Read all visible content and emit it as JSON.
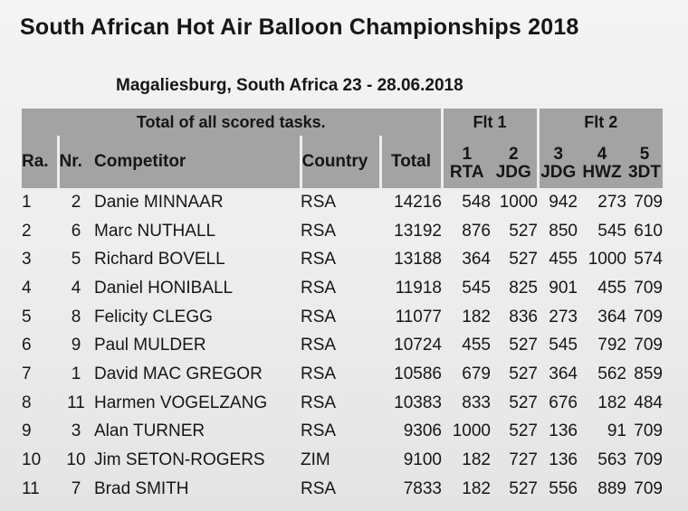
{
  "title": "South African Hot Air Balloon Championships 2018",
  "subtitle": "Magaliesburg, South Africa 23 - 28.06.2018",
  "header": {
    "caption": "Total of all scored tasks.",
    "flight1": "Flt 1",
    "flight2": "Flt 2",
    "col_rank": "Ra.",
    "col_nr": "Nr.",
    "col_competitor": "Competitor",
    "col_country": "Country",
    "col_total": "Total",
    "tasks": [
      {
        "num": "1",
        "code": "RTA"
      },
      {
        "num": "2",
        "code": "JDG"
      },
      {
        "num": "3",
        "code": "JDG"
      },
      {
        "num": "4",
        "code": "HWZ"
      },
      {
        "num": "5",
        "code": "3DT"
      }
    ]
  },
  "rows": [
    {
      "rank": "1",
      "nr": "2",
      "name": "Danie MINNAAR",
      "country": "RSA",
      "total": "14216",
      "t1": "548",
      "t2": "1000",
      "t3": "942",
      "t4": "273",
      "t5": "709"
    },
    {
      "rank": "2",
      "nr": "6",
      "name": "Marc NUTHALL",
      "country": "RSA",
      "total": "13192",
      "t1": "876",
      "t2": "527",
      "t3": "850",
      "t4": "545",
      "t5": "610"
    },
    {
      "rank": "3",
      "nr": "5",
      "name": "Richard BOVELL",
      "country": "RSA",
      "total": "13188",
      "t1": "364",
      "t2": "527",
      "t3": "455",
      "t4": "1000",
      "t5": "574"
    },
    {
      "rank": "4",
      "nr": "4",
      "name": "Daniel HONIBALL",
      "country": "RSA",
      "total": "11918",
      "t1": "545",
      "t2": "825",
      "t3": "901",
      "t4": "455",
      "t5": "709"
    },
    {
      "rank": "5",
      "nr": "8",
      "name": "Felicity CLEGG",
      "country": "RSA",
      "total": "11077",
      "t1": "182",
      "t2": "836",
      "t3": "273",
      "t4": "364",
      "t5": "709"
    },
    {
      "rank": "6",
      "nr": "9",
      "name": "Paul MULDER",
      "country": "RSA",
      "total": "10724",
      "t1": "455",
      "t2": "527",
      "t3": "545",
      "t4": "792",
      "t5": "709"
    },
    {
      "rank": "7",
      "nr": "1",
      "name": "David MAC GREGOR",
      "country": "RSA",
      "total": "10586",
      "t1": "679",
      "t2": "527",
      "t3": "364",
      "t4": "562",
      "t5": "859"
    },
    {
      "rank": "8",
      "nr": "11",
      "name": "Harmen VOGELZANG",
      "country": "RSA",
      "total": "10383",
      "t1": "833",
      "t2": "527",
      "t3": "676",
      "t4": "182",
      "t5": "484"
    },
    {
      "rank": "9",
      "nr": "3",
      "name": "Alan TURNER",
      "country": "RSA",
      "total": "9306",
      "t1": "1000",
      "t2": "527",
      "t3": "136",
      "t4": "91",
      "t5": "709"
    },
    {
      "rank": "10",
      "nr": "10",
      "name": "Jim SETON-ROGERS",
      "country": "ZIM",
      "total": "9100",
      "t1": "182",
      "t2": "727",
      "t3": "136",
      "t4": "563",
      "t5": "709"
    },
    {
      "rank": "11",
      "nr": "7",
      "name": "Brad SMITH",
      "country": "RSA",
      "total": "7833",
      "t1": "182",
      "t2": "527",
      "t3": "556",
      "t4": "889",
      "t5": "709"
    }
  ]
}
